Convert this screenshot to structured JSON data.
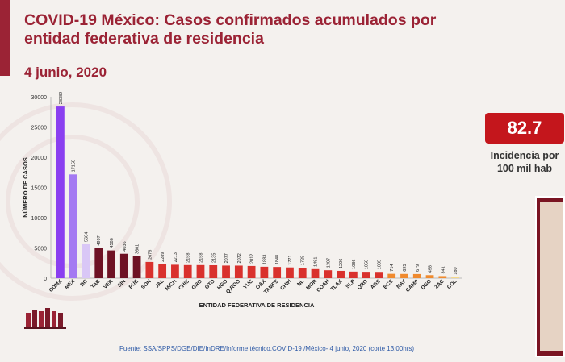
{
  "header": {
    "title": "COVID-19 México: Casos confirmados acumulados por entidad federativa de residencia",
    "date": "4 junio, 2020"
  },
  "kpi": {
    "value": "82.7",
    "label": "Incidencia por 100 mil hab"
  },
  "footer": {
    "source": "Fuente: SSA/SPPS/DGE/DIE/InDRE/Informe técnico.COVID-19 /México- 4 junio, 2020 (corte 13:00hrs)"
  },
  "colors": {
    "brand": "#9b2335",
    "kpi": "#c4161c",
    "bar_purple_dark": "#8a3ff0",
    "bar_purple_mid": "#a47af2",
    "bar_purple_light": "#d9c7f6",
    "bar_maroon": "#6e1224",
    "bar_red": "#d9312d",
    "bar_orange": "#f08a2e",
    "bar_yellow": "#f5d98a"
  },
  "chart_data": {
    "type": "bar",
    "xlabel": "ENTIDAD FEDERATIVA DE RESIDENCIA",
    "ylabel": "NÚMERO DE CASOS",
    "ylim": [
      0,
      30000
    ],
    "yticks": [
      0,
      5000,
      10000,
      15000,
      20000,
      25000,
      30000
    ],
    "grid": false,
    "categories": [
      "CDMX",
      "MEX",
      "BC",
      "TAB",
      "VER",
      "SIN",
      "PUE",
      "SON",
      "JAL",
      "MICH",
      "CHIS",
      "GRO",
      "GTO",
      "HGO",
      "Q.ROO",
      "YUC",
      "OAX",
      "TAMPS",
      "CHIH",
      "NL",
      "MOR",
      "COAH",
      "TLAX",
      "SLP",
      "QRO",
      "AGS",
      "BCS",
      "NAY",
      "CAMP",
      "DGO",
      "ZAC",
      "COL"
    ],
    "values": [
      28389,
      17158,
      5604,
      4997,
      4586,
      4036,
      3601,
      2676,
      2289,
      2213,
      2158,
      2158,
      2135,
      2077,
      2072,
      2012,
      1883,
      1848,
      1771,
      1725,
      1491,
      1307,
      1206,
      1086,
      1050,
      1035,
      714,
      695,
      679,
      498,
      341,
      180
    ],
    "value_labels": [
      "28389",
      "17158",
      "5604",
      "4997",
      "4586",
      "4036",
      "3601",
      "2676",
      "2289",
      "2213",
      "2158",
      "2158",
      "2135",
      "2077",
      "2072",
      "2012",
      "1883",
      "1848",
      "1771",
      "1725",
      "1491",
      "1307",
      "1206",
      "1086",
      "1050",
      "1035",
      "714",
      "695",
      "679",
      "498",
      "341",
      "180"
    ]
  }
}
